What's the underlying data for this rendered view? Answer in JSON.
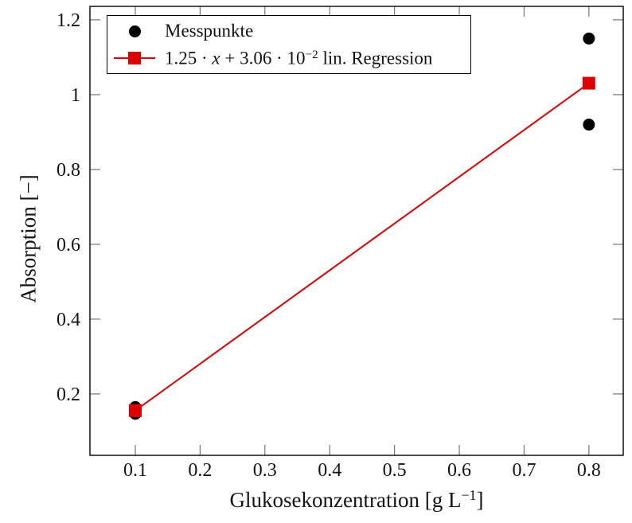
{
  "figure": {
    "background": "#ffffff"
  },
  "chart_data": {
    "type": "scatter",
    "title": "",
    "xlabel_parts": {
      "prefix": "Glukosekonzentration [g L",
      "sup": "−1",
      "suffix": "]"
    },
    "ylabel": "Absorption [−]",
    "xlim": [
      0.03,
      0.853
    ],
    "ylim": [
      0.036,
      1.236
    ],
    "grid": false,
    "legend_position": "top-left",
    "axis_color": "#000000",
    "tick_color": "#767676",
    "xticks": {
      "values": [
        0.1,
        0.2,
        0.3,
        0.4,
        0.5,
        0.6,
        0.7,
        0.8
      ],
      "labels": [
        "0.1",
        "0.2",
        "0.3",
        "0.4",
        "0.5",
        "0.6",
        "0.7",
        "0.8"
      ]
    },
    "yticks": {
      "values": [
        0.2,
        0.4,
        0.6,
        0.8,
        1.0,
        1.2
      ],
      "labels": [
        "0.2",
        "0.4",
        "0.6",
        "0.8",
        "1",
        "1.2"
      ]
    },
    "series": [
      {
        "name": "Messpunkte",
        "plot_type": "scatter",
        "marker": "circle",
        "marker_size": 15,
        "color": "#000000",
        "points": [
          [
            0.1,
            0.165
          ],
          [
            0.1,
            0.147
          ],
          [
            0.8,
            1.15
          ],
          [
            0.8,
            0.92
          ]
        ]
      },
      {
        "name": "lin. Regression",
        "plot_type": "line",
        "marker": "square",
        "marker_size": 16,
        "line_width": 2,
        "color": "#dd0000",
        "slope": 1.25,
        "intercept": 0.0306,
        "points": [
          [
            0.1,
            0.1556
          ],
          [
            0.8,
            1.0306
          ]
        ]
      }
    ]
  },
  "legend": {
    "items": [
      {
        "label": "Messpunkte"
      },
      {
        "part1": "1.25 · ",
        "var": "x",
        "part2": " + 3.06 · 10",
        "exp": "−2",
        "part3": " lin. Regression"
      }
    ]
  }
}
